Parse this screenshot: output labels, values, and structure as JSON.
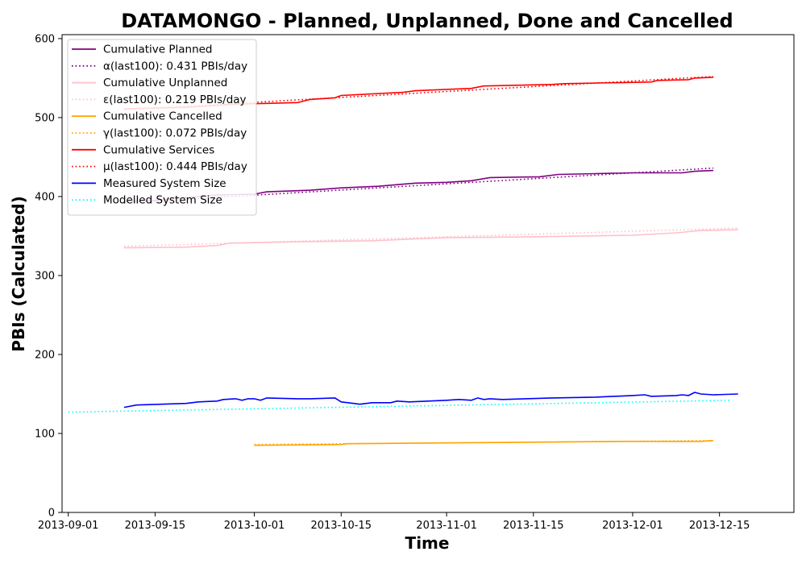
{
  "chart_data": {
    "type": "line",
    "title": "DATAMONGO - Planned, Unplanned, Done  and Cancelled",
    "xlabel": "Time",
    "ylabel": "PBIs (Calculated)",
    "xlim": [
      "2013-08-31",
      "2013-12-27"
    ],
    "ylim": [
      0,
      605
    ],
    "x_ticks": [
      "2013-09-01",
      "2013-09-15",
      "2013-10-01",
      "2013-10-15",
      "2013-11-01",
      "2013-11-15",
      "2013-12-01",
      "2013-12-15"
    ],
    "y_ticks": [
      0,
      100,
      200,
      300,
      400,
      500,
      600
    ],
    "grid": false,
    "legend_position": "upper-left",
    "series": [
      {
        "name": "Cumulative Planned",
        "color": "#800080",
        "style": "solid",
        "points": [
          [
            "2013-09-10",
            394
          ],
          [
            "2013-09-15",
            395
          ],
          [
            "2013-09-20",
            399
          ],
          [
            "2013-09-25",
            402
          ],
          [
            "2013-10-01",
            403
          ],
          [
            "2013-10-03",
            406
          ],
          [
            "2013-10-10",
            408
          ],
          [
            "2013-10-15",
            411
          ],
          [
            "2013-10-21",
            413
          ],
          [
            "2013-10-27",
            417
          ],
          [
            "2013-11-01",
            418
          ],
          [
            "2013-11-05",
            420
          ],
          [
            "2013-11-08",
            424
          ],
          [
            "2013-11-16",
            425
          ],
          [
            "2013-11-19",
            428
          ],
          [
            "2013-11-25",
            429
          ],
          [
            "2013-12-01",
            430
          ],
          [
            "2013-12-09",
            430
          ],
          [
            "2013-12-11",
            432
          ],
          [
            "2013-12-14",
            433
          ]
        ]
      },
      {
        "name": "α(last100): 0.431 PBIs/day",
        "color": "#800080",
        "style": "dotted",
        "points": [
          [
            "2013-09-10",
            392
          ],
          [
            "2013-12-14",
            436
          ]
        ]
      },
      {
        "name": "Cumulative Unplanned",
        "color": "#ffc0cb",
        "style": "solid",
        "points": [
          [
            "2013-09-10",
            335
          ],
          [
            "2013-09-20",
            336
          ],
          [
            "2013-09-25",
            338
          ],
          [
            "2013-09-27",
            341
          ],
          [
            "2013-10-10",
            343
          ],
          [
            "2013-10-20",
            344
          ],
          [
            "2013-11-01",
            348
          ],
          [
            "2013-11-15",
            349
          ],
          [
            "2013-12-01",
            351
          ],
          [
            "2013-12-08",
            354
          ],
          [
            "2013-12-12",
            357
          ],
          [
            "2013-12-18",
            358
          ]
        ]
      },
      {
        "name": "ε(last100): 0.219 PBIs/day",
        "color": "#ffc0cb",
        "style": "dotted",
        "points": [
          [
            "2013-09-10",
            337
          ],
          [
            "2013-12-18",
            360
          ]
        ]
      },
      {
        "name": "Cumulative Cancelled",
        "color": "#ffa500",
        "style": "solid",
        "points": [
          [
            "2013-10-01",
            85
          ],
          [
            "2013-10-15",
            86
          ],
          [
            "2013-10-16",
            87
          ],
          [
            "2013-11-01",
            88
          ],
          [
            "2013-11-15",
            89
          ],
          [
            "2013-12-01",
            90
          ],
          [
            "2013-12-12",
            90
          ],
          [
            "2013-12-14",
            91
          ]
        ]
      },
      {
        "name": "γ(last100): 0.072 PBIs/day",
        "color": "#ffa500",
        "style": "dotted",
        "points": [
          [
            "2013-10-01",
            86
          ],
          [
            "2013-12-14",
            91
          ]
        ]
      },
      {
        "name": "Cumulative Services",
        "color": "#ff0000",
        "style": "solid",
        "points": [
          [
            "2013-09-10",
            511
          ],
          [
            "2013-09-20",
            513
          ],
          [
            "2013-09-28",
            517
          ],
          [
            "2013-10-08",
            519
          ],
          [
            "2013-10-10",
            523
          ],
          [
            "2013-10-14",
            525
          ],
          [
            "2013-10-15",
            528
          ],
          [
            "2013-10-25",
            532
          ],
          [
            "2013-10-27",
            534
          ],
          [
            "2013-11-05",
            537
          ],
          [
            "2013-11-07",
            540
          ],
          [
            "2013-11-18",
            542
          ],
          [
            "2013-11-20",
            543
          ],
          [
            "2013-12-04",
            545
          ],
          [
            "2013-12-05",
            547
          ],
          [
            "2013-12-10",
            548
          ],
          [
            "2013-12-11",
            550
          ],
          [
            "2013-12-14",
            551
          ]
        ]
      },
      {
        "name": "μ(last100): 0.444 PBIs/day",
        "color": "#ff0000",
        "style": "dotted",
        "points": [
          [
            "2013-09-10",
            510
          ],
          [
            "2013-12-14",
            552
          ]
        ]
      },
      {
        "name": "Measured System Size",
        "color": "#0000ff",
        "style": "solid",
        "points": [
          [
            "2013-09-10",
            133
          ],
          [
            "2013-09-12",
            136
          ],
          [
            "2013-09-20",
            138
          ],
          [
            "2013-09-22",
            140
          ],
          [
            "2013-09-25",
            141
          ],
          [
            "2013-09-26",
            143
          ],
          [
            "2013-09-28",
            144
          ],
          [
            "2013-09-29",
            142
          ],
          [
            "2013-09-30",
            144
          ],
          [
            "2013-10-01",
            144
          ],
          [
            "2013-10-02",
            142
          ],
          [
            "2013-10-03",
            145
          ],
          [
            "2013-10-08",
            144
          ],
          [
            "2013-10-10",
            144
          ],
          [
            "2013-10-14",
            145
          ],
          [
            "2013-10-15",
            140
          ],
          [
            "2013-10-17",
            138
          ],
          [
            "2013-10-18",
            137
          ],
          [
            "2013-10-20",
            139
          ],
          [
            "2013-10-23",
            139
          ],
          [
            "2013-10-24",
            141
          ],
          [
            "2013-10-26",
            140
          ],
          [
            "2013-11-01",
            142
          ],
          [
            "2013-11-03",
            143
          ],
          [
            "2013-11-05",
            142
          ],
          [
            "2013-11-06",
            145
          ],
          [
            "2013-11-07",
            143
          ],
          [
            "2013-11-08",
            144
          ],
          [
            "2013-11-10",
            143
          ],
          [
            "2013-11-18",
            145
          ],
          [
            "2013-11-25",
            146
          ],
          [
            "2013-12-01",
            148
          ],
          [
            "2013-12-03",
            149
          ],
          [
            "2013-12-04",
            147
          ],
          [
            "2013-12-08",
            148
          ],
          [
            "2013-12-09",
            149
          ],
          [
            "2013-12-10",
            148
          ],
          [
            "2013-12-11",
            152
          ],
          [
            "2013-12-12",
            150
          ],
          [
            "2013-12-14",
            149
          ],
          [
            "2013-12-18",
            150
          ]
        ]
      },
      {
        "name": "Modelled System Size",
        "color": "#00ffff",
        "style": "dotted",
        "points": [
          [
            "2013-09-01",
            127
          ],
          [
            "2013-12-17",
            142
          ]
        ]
      }
    ]
  }
}
